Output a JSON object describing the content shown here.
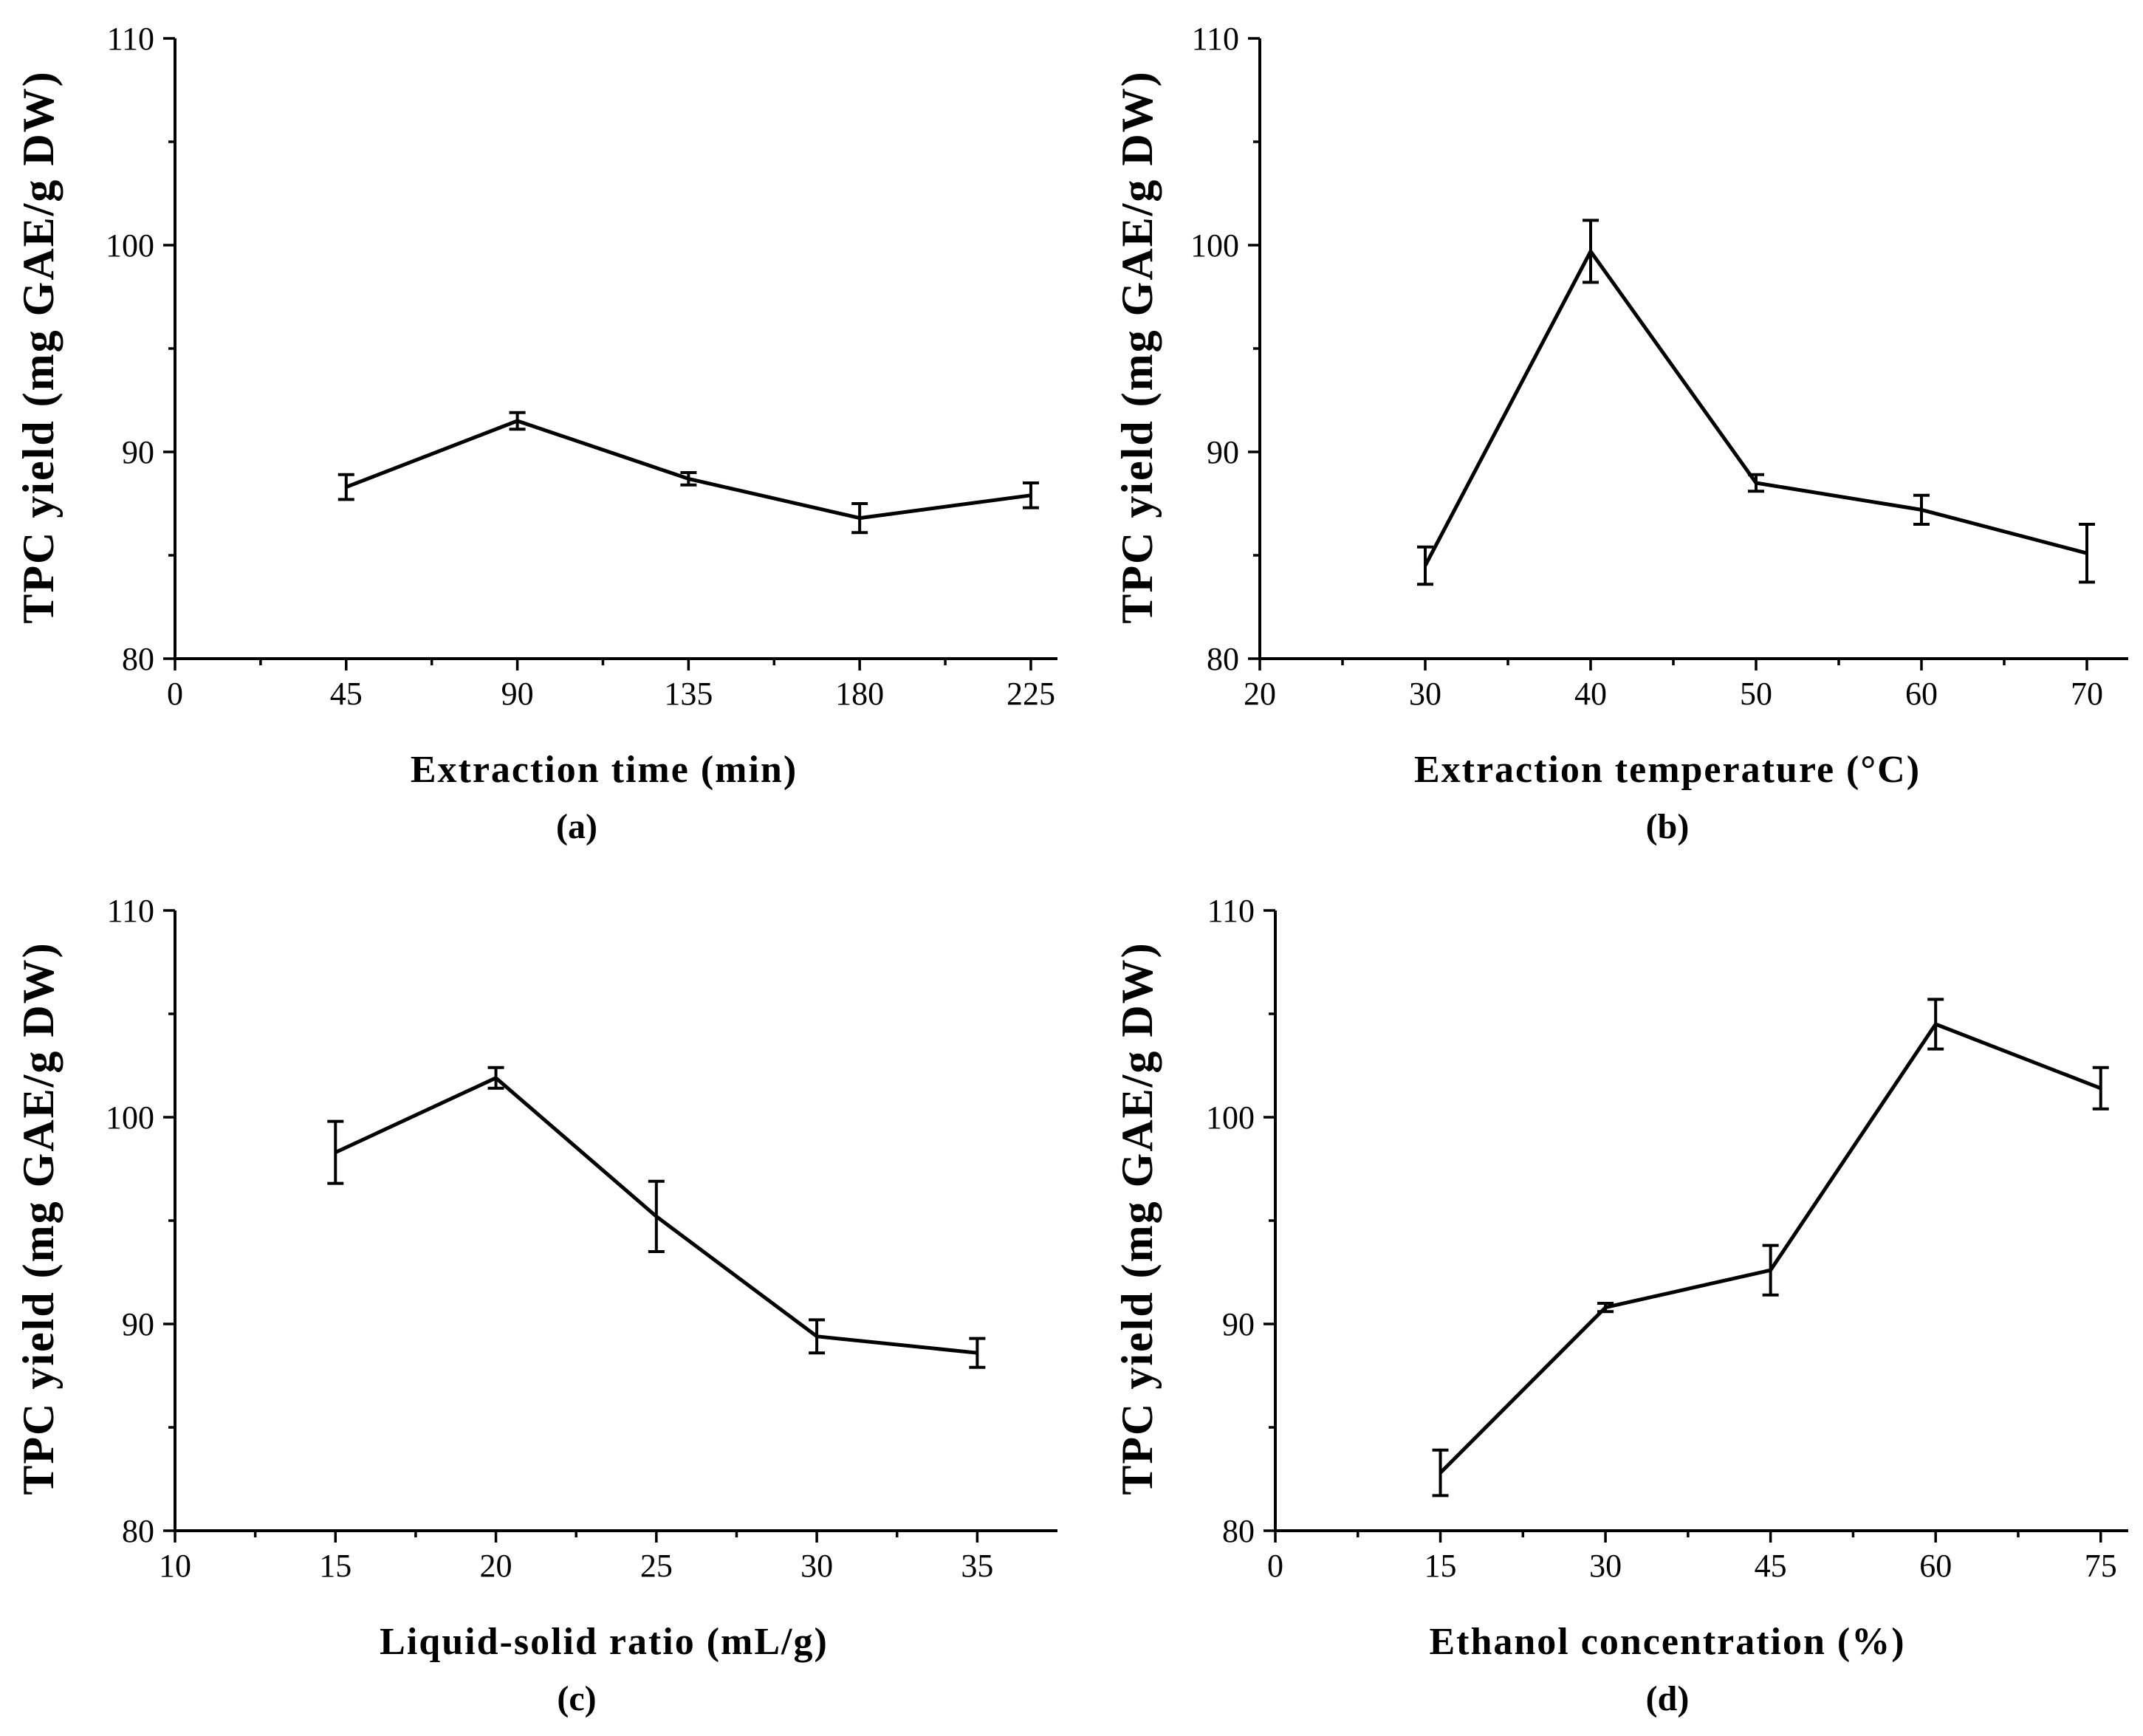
{
  "chart_data": [
    {
      "type": "line",
      "panel_label": "(a)",
      "xlabel": "Extraction time (min)",
      "ylabel": "TPC yield  (mg GAE/g DW)",
      "xlim": [
        0,
        232
      ],
      "ylim": [
        80,
        110
      ],
      "xticks": [
        0,
        45,
        90,
        135,
        180,
        225
      ],
      "yticks": [
        80,
        90,
        100,
        110
      ],
      "x": [
        45,
        90,
        135,
        180,
        225
      ],
      "y": [
        88.3,
        91.5,
        88.7,
        86.8,
        87.9
      ],
      "err": [
        0.6,
        0.4,
        0.3,
        0.7,
        0.6
      ]
    },
    {
      "type": "line",
      "panel_label": "(b)",
      "xlabel": "Extraction temperature (°C)",
      "ylabel": "TPC yield  (mg GAE/g DW)",
      "xlim": [
        20,
        72.5
      ],
      "ylim": [
        80,
        110
      ],
      "xticks": [
        20,
        30,
        40,
        50,
        60,
        70
      ],
      "yticks": [
        80,
        90,
        100,
        110
      ],
      "x": [
        30,
        40,
        50,
        60,
        70
      ],
      "y": [
        84.5,
        99.7,
        88.5,
        87.2,
        85.1
      ],
      "err": [
        0.9,
        1.5,
        0.4,
        0.7,
        1.4
      ]
    },
    {
      "type": "line",
      "panel_label": "(c)",
      "xlabel": "Liquid-solid ratio (mL/g)",
      "ylabel": "TPC yield  (mg GAE/g DW)",
      "xlim": [
        10,
        37.5
      ],
      "ylim": [
        80,
        110
      ],
      "xticks": [
        10,
        15,
        20,
        25,
        30,
        35
      ],
      "yticks": [
        80,
        90,
        100,
        110
      ],
      "x": [
        15,
        20,
        25,
        30,
        35
      ],
      "y": [
        98.3,
        101.9,
        95.2,
        89.4,
        88.6
      ],
      "err": [
        1.5,
        0.5,
        1.7,
        0.8,
        0.7
      ]
    },
    {
      "type": "line",
      "panel_label": "(d)",
      "xlabel": "Ethanol concentration (%)",
      "ylabel": "TPC yield  (mg GAE/g DW)",
      "xlim": [
        0,
        77.5
      ],
      "ylim": [
        80,
        110
      ],
      "xticks": [
        0,
        15,
        30,
        45,
        60,
        75
      ],
      "yticks": [
        80,
        90,
        100,
        110
      ],
      "x": [
        15,
        30,
        45,
        60,
        75
      ],
      "y": [
        82.8,
        90.8,
        92.6,
        104.5,
        101.4
      ],
      "err": [
        1.1,
        0.2,
        1.2,
        1.2,
        1.0
      ]
    }
  ]
}
